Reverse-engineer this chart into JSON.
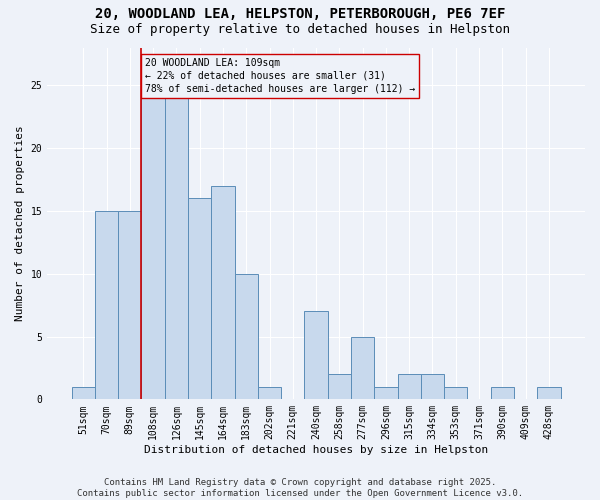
{
  "title_line1": "20, WOODLAND LEA, HELPSTON, PETERBOROUGH, PE6 7EF",
  "title_line2": "Size of property relative to detached houses in Helpston",
  "xlabel": "Distribution of detached houses by size in Helpston",
  "ylabel": "Number of detached properties",
  "footnote": "Contains HM Land Registry data © Crown copyright and database right 2025.\nContains public sector information licensed under the Open Government Licence v3.0.",
  "categories": [
    "51sqm",
    "70sqm",
    "89sqm",
    "108sqm",
    "126sqm",
    "145sqm",
    "164sqm",
    "183sqm",
    "202sqm",
    "221sqm",
    "240sqm",
    "258sqm",
    "277sqm",
    "296sqm",
    "315sqm",
    "334sqm",
    "353sqm",
    "371sqm",
    "390sqm",
    "409sqm",
    "428sqm"
  ],
  "values": [
    1,
    15,
    15,
    24,
    24,
    16,
    17,
    10,
    1,
    0,
    7,
    2,
    5,
    1,
    2,
    2,
    1,
    0,
    1,
    0,
    1
  ],
  "bar_color": "#c8d9ed",
  "bar_edge_color": "#5b8db8",
  "property_line_idx": 3,
  "property_line_color": "#cc0000",
  "annotation_text": "20 WOODLAND LEA: 109sqm\n← 22% of detached houses are smaller (31)\n78% of semi-detached houses are larger (112) →",
  "annotation_box_color": "#cc0000",
  "ylim": [
    0,
    28
  ],
  "yticks": [
    0,
    5,
    10,
    15,
    20,
    25
  ],
  "background_color": "#eef2f9",
  "grid_color": "#ffffff",
  "title_fontsize": 10,
  "subtitle_fontsize": 9,
  "axis_label_fontsize": 8,
  "tick_fontsize": 7,
  "annotation_fontsize": 7,
  "footnote_fontsize": 6.5
}
